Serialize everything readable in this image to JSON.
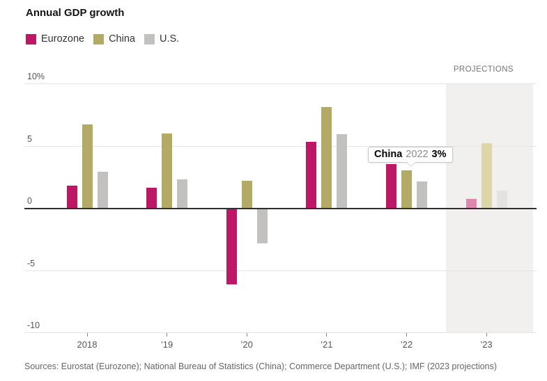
{
  "title": "Annual GDP growth",
  "legend": [
    {
      "label": "Eurozone",
      "color": "#bd1866"
    },
    {
      "label": "China",
      "color": "#b3aa65"
    },
    {
      "label": "U.S.",
      "color": "#c2c1c0"
    }
  ],
  "projections_label": "PROJECTIONS",
  "tooltip": {
    "series": "China",
    "year": "2022",
    "value": "3%"
  },
  "source_line": "Sources: Eurostat (Eurozone); National Bureau of Statistics (China); Commerce Department (U.S.); IMF (2023 projections)",
  "chart_data": {
    "type": "bar",
    "title": "Annual GDP growth",
    "unit": "%",
    "categories": [
      "2018",
      "’19",
      "’20",
      "’21",
      "’22",
      "’23"
    ],
    "series": [
      {
        "name": "Eurozone",
        "color": "#bd1866",
        "projection_color": "#df87ae",
        "values": [
          1.8,
          1.6,
          -6.1,
          5.3,
          3.5,
          0.7
        ]
      },
      {
        "name": "China",
        "color": "#b3aa65",
        "projection_color": "#dcd6a9",
        "values": [
          6.7,
          6.0,
          2.2,
          8.1,
          3.0,
          5.2
        ]
      },
      {
        "name": "U.S.",
        "color": "#c2c1c0",
        "projection_color": "#e4e3e1",
        "values": [
          2.9,
          2.3,
          -2.8,
          5.9,
          2.1,
          1.4
        ]
      }
    ],
    "ylim": [
      -10,
      10
    ],
    "yticks": [
      {
        "v": 10,
        "label": "10%"
      },
      {
        "v": 5,
        "label": "5"
      },
      {
        "v": 0,
        "label": "0"
      },
      {
        "v": -5,
        "label": "-5"
      },
      {
        "v": -10,
        "label": "-10"
      }
    ],
    "grid": true,
    "legend_position": "top-left",
    "projection_category": "’23",
    "annotations": [
      {
        "text": "China 2022 3%",
        "target": {
          "series": "China",
          "category": "’22"
        }
      }
    ]
  }
}
